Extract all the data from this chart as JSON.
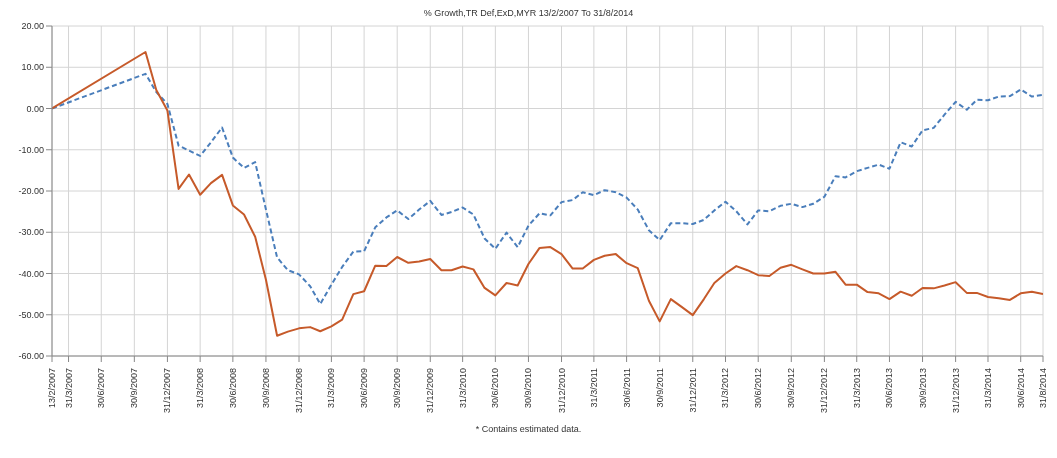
{
  "chart_data": {
    "type": "line",
    "title": "% Growth,TR Def,ExD,MYR 13/2/2007 To 31/8/2014",
    "x": [
      "2007-02-13",
      "2007-10-31",
      "2007-11-30",
      "2007-12-31",
      "2008-01-31",
      "2008-02-29",
      "2008-03-31",
      "2008-04-30",
      "2008-05-31",
      "2008-06-30",
      "2008-07-31",
      "2008-08-31",
      "2008-09-30",
      "2008-10-31",
      "2008-11-30",
      "2008-12-31",
      "2009-01-31",
      "2009-02-28",
      "2009-03-31",
      "2009-04-30",
      "2009-05-31",
      "2009-06-30",
      "2009-07-31",
      "2009-08-31",
      "2009-09-30",
      "2009-10-31",
      "2009-11-30",
      "2009-12-31",
      "2010-01-31",
      "2010-02-28",
      "2010-03-31",
      "2010-04-30",
      "2010-05-31",
      "2010-06-30",
      "2010-07-31",
      "2010-08-31",
      "2010-09-30",
      "2010-10-31",
      "2010-11-30",
      "2010-12-31",
      "2011-01-31",
      "2011-02-28",
      "2011-03-31",
      "2011-04-30",
      "2011-05-31",
      "2011-06-30",
      "2011-07-31",
      "2011-08-31",
      "2011-09-30",
      "2011-10-31",
      "2011-11-30",
      "2011-12-31",
      "2012-01-31",
      "2012-02-29",
      "2012-03-31",
      "2012-04-30",
      "2012-05-31",
      "2012-06-30",
      "2012-07-31",
      "2012-08-31",
      "2012-09-30",
      "2012-10-31",
      "2012-11-30",
      "2012-12-31",
      "2013-01-31",
      "2013-02-28",
      "2013-03-31",
      "2013-04-30",
      "2013-05-31",
      "2013-06-30",
      "2013-07-31",
      "2013-08-31",
      "2013-09-30",
      "2013-10-31",
      "2013-11-30",
      "2013-12-31",
      "2014-01-31",
      "2014-02-28",
      "2014-03-31",
      "2014-04-30",
      "2014-05-31",
      "2014-06-30",
      "2014-07-31",
      "2014-08-31"
    ],
    "series": [
      {
        "color": "#4a7ebb",
        "line_style": "dashed",
        "values": [
          0,
          8.4,
          4,
          1.1,
          -9,
          -10.2,
          -11.5,
          -8.2,
          -4.6,
          -11.9,
          -14.4,
          -13,
          -24.5,
          -36.1,
          -39.2,
          -40.2,
          -43.1,
          -47.4,
          -42.7,
          -38.4,
          -34.7,
          -34.6,
          -28.8,
          -26.4,
          -24.7,
          -26.8,
          -24.5,
          -22.4,
          -25.8,
          -25.1,
          -24,
          -25.7,
          -31.5,
          -34,
          -30.1,
          -33.6,
          -28.4,
          -25.4,
          -25.9,
          -22.7,
          -22.2,
          -20.3,
          -21,
          -19.8,
          -20.3,
          -21.6,
          -24.5,
          -29.5,
          -31.9,
          -27.8,
          -27.8,
          -28,
          -27,
          -24.7,
          -22.6,
          -24.9,
          -28.1,
          -24.7,
          -24.9,
          -23.6,
          -23.1,
          -23.9,
          -23.1,
          -21.4,
          -16.4,
          -16.7,
          -15.2,
          -14.4,
          -13.6,
          -14.6,
          -8.2,
          -9.2,
          -5.3,
          -4.7,
          -1.5,
          1.6,
          -0.3,
          2.1,
          2,
          2.9,
          3,
          4.6,
          2.9,
          3.3
        ]
      },
      {
        "color": "#c65a2a",
        "line_style": "solid",
        "values": [
          0,
          13.7,
          4.5,
          -0.5,
          -19.5,
          -16,
          -20.9,
          -18.1,
          -16.1,
          -23.5,
          -25.7,
          -31.1,
          -41.5,
          -55.1,
          -54.1,
          -53.3,
          -53,
          -54,
          -52.8,
          -51.2,
          -45,
          -44.3,
          -38.1,
          -38.2,
          -36,
          -37.4,
          -37.1,
          -36.5,
          -39.2,
          -39.2,
          -38.3,
          -39,
          -43.5,
          -45.3,
          -42.3,
          -42.9,
          -37.7,
          -33.8,
          -33.6,
          -35.3,
          -38.8,
          -38.8,
          -36.7,
          -35.7,
          -35.3,
          -37.5,
          -38.7,
          -46.6,
          -51.6,
          -46.2,
          -48.1,
          -50.1,
          -46.2,
          -42.3,
          -40,
          -38.2,
          -39.2,
          -40.4,
          -40.6,
          -38.6,
          -37.9,
          -39,
          -40,
          -40,
          -39.6,
          -42.7,
          -42.7,
          -44.5,
          -44.8,
          -46.2,
          -44.4,
          -45.4,
          -43.5,
          -43.6,
          -42.9,
          -42.1,
          -44.7,
          -44.7,
          -45.7,
          -46,
          -46.4,
          -44.8,
          -44.4,
          -45
        ]
      }
    ],
    "xlim": [
      "2007-02-13",
      "2014-08-31"
    ],
    "xticks": [
      {
        "value": "2007-02-13",
        "label": "13/2/2007"
      },
      {
        "value": "2007-03-31",
        "label": "31/3/2007"
      },
      {
        "value": "2007-06-30",
        "label": "30/6/2007"
      },
      {
        "value": "2007-09-30",
        "label": "30/9/2007"
      },
      {
        "value": "2007-12-31",
        "label": "31/12/2007"
      },
      {
        "value": "2008-03-31",
        "label": "31/3/2008"
      },
      {
        "value": "2008-06-30",
        "label": "30/6/2008"
      },
      {
        "value": "2008-09-30",
        "label": "30/9/2008"
      },
      {
        "value": "2008-12-31",
        "label": "31/12/2008"
      },
      {
        "value": "2009-03-31",
        "label": "31/3/2009"
      },
      {
        "value": "2009-06-30",
        "label": "30/6/2009"
      },
      {
        "value": "2009-09-30",
        "label": "30/9/2009"
      },
      {
        "value": "2009-12-31",
        "label": "31/12/2009"
      },
      {
        "value": "2010-03-31",
        "label": "31/3/2010"
      },
      {
        "value": "2010-06-30",
        "label": "30/6/2010"
      },
      {
        "value": "2010-09-30",
        "label": "30/9/2010"
      },
      {
        "value": "2010-12-31",
        "label": "31/12/2010"
      },
      {
        "value": "2011-03-31",
        "label": "31/3/2011"
      },
      {
        "value": "2011-06-30",
        "label": "30/6/2011"
      },
      {
        "value": "2011-09-30",
        "label": "30/9/2011"
      },
      {
        "value": "2011-12-31",
        "label": "31/12/2011"
      },
      {
        "value": "2012-03-31",
        "label": "31/3/2012"
      },
      {
        "value": "2012-06-30",
        "label": "30/6/2012"
      },
      {
        "value": "2012-09-30",
        "label": "30/9/2012"
      },
      {
        "value": "2012-12-31",
        "label": "31/12/2012"
      },
      {
        "value": "2013-03-31",
        "label": "31/3/2013"
      },
      {
        "value": "2013-06-30",
        "label": "30/6/2013"
      },
      {
        "value": "2013-09-30",
        "label": "30/9/2013"
      },
      {
        "value": "2013-12-31",
        "label": "31/12/2013"
      },
      {
        "value": "2014-03-31",
        "label": "31/3/2014"
      },
      {
        "value": "2014-06-30",
        "label": "30/6/2014"
      },
      {
        "value": "2014-08-31",
        "label": "31/8/2014"
      }
    ],
    "ylim": [
      -60,
      20
    ],
    "yticks": [
      {
        "value": -60,
        "label": "-60.00"
      },
      {
        "value": -50,
        "label": "-50.00"
      },
      {
        "value": -40,
        "label": "-40.00"
      },
      {
        "value": -30,
        "label": "-30.00"
      },
      {
        "value": -20,
        "label": "-20.00"
      },
      {
        "value": -10,
        "label": "-10.00"
      },
      {
        "value": 0,
        "label": "0.00"
      },
      {
        "value": 10,
        "label": "10.00"
      },
      {
        "value": 20,
        "label": "20.00"
      }
    ],
    "grid": true,
    "marker": "none",
    "annotations": [
      "* Contains estimated data."
    ]
  }
}
